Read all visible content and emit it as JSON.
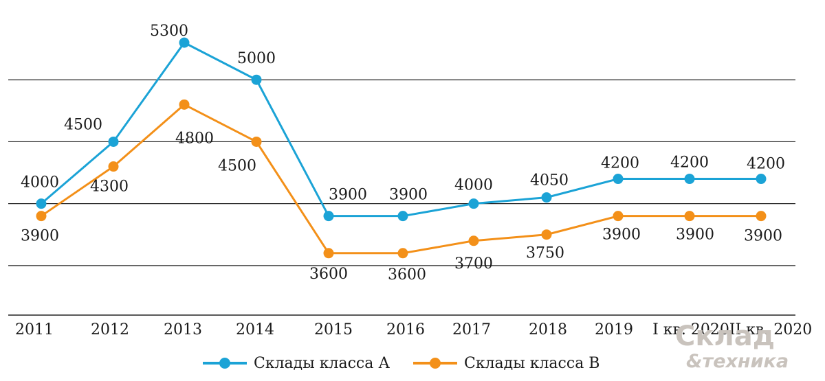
{
  "chart_data": {
    "type": "line",
    "categories": [
      "2011",
      "2012",
      "2013",
      "2014",
      "2015",
      "2016",
      "2017",
      "2018",
      "2019",
      "I кв. 2020",
      "II кв. 2020"
    ],
    "series": [
      {
        "name": "Склады класса А",
        "color": "#1ba3d6",
        "values": [
          4000,
          4500,
          5300,
          5000,
          3900,
          3900,
          4000,
          4050,
          4200,
          4200,
          4200
        ],
        "labels": [
          "4000",
          "4500",
          "5300",
          "5000",
          "3900",
          "3900",
          "4000",
          "4050",
          "4200",
          "4200",
          "4200"
        ]
      },
      {
        "name": "Склады класса В",
        "color": "#f39019",
        "values": [
          3900,
          4300,
          4800,
          4500,
          3600,
          3600,
          3700,
          3750,
          3900,
          3900,
          3900
        ],
        "labels": [
          "3900",
          "4300",
          "4800",
          "4500",
          "3600",
          "3600",
          "3700",
          "3750",
          "3900",
          "3900",
          "3900"
        ]
      }
    ],
    "ylim": [
      3100,
      5600
    ],
    "gridlines": [
      3500,
      4000,
      4500,
      5000
    ],
    "grid": true,
    "legend": "bottom",
    "title": "",
    "xlabel": "",
    "ylabel": ""
  },
  "logo": {
    "line1": "Склад",
    "line2": "&техника",
    "color": "#c9c3bd"
  }
}
